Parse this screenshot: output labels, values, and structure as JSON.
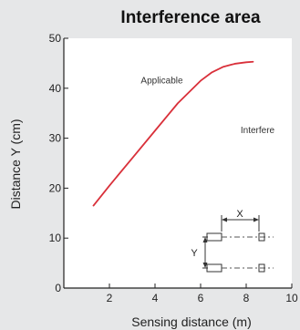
{
  "chart_data": {
    "type": "line",
    "title": "Interference area",
    "xlabel": "Sensing distance (m)",
    "ylabel": "Distance Y (cm)",
    "xlim": [
      0,
      10
    ],
    "ylim": [
      0,
      50
    ],
    "xticks": [
      "2",
      "4",
      "6",
      "8",
      "10"
    ],
    "yticks": [
      "0",
      "10",
      "20",
      "30",
      "40",
      "50"
    ],
    "grid": false,
    "series": [
      {
        "color": "#d9303a",
        "x": [
          1.3,
          2.0,
          3.0,
          4.0,
          5.0,
          6.0,
          6.5,
          7.0,
          7.5,
          8.0,
          8.3
        ],
        "y": [
          16.5,
          20.5,
          26.0,
          31.5,
          37.0,
          41.5,
          43.2,
          44.3,
          44.9,
          45.2,
          45.3
        ]
      }
    ],
    "annotations": [
      {
        "text": "Applicable",
        "x": 4.3,
        "y": 41
      },
      {
        "text": "Interfere",
        "x": 8.5,
        "y": 31
      }
    ],
    "inset_diagram": {
      "x_label": "X",
      "y_label": "Y"
    }
  }
}
